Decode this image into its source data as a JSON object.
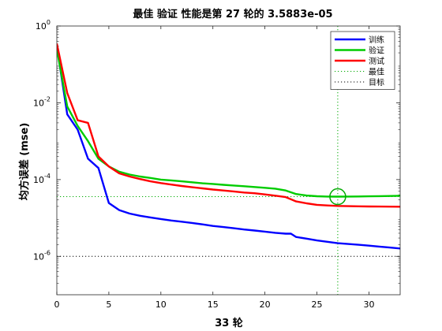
{
  "chart_data": {
    "type": "line",
    "title": "最佳 验证 性能是第 27 轮的 3.5883e-05",
    "xlabel": "33 轮",
    "ylabel": "均方误差 (mse)",
    "xlim": [
      0,
      33
    ],
    "ylim": [
      1e-07,
      1
    ],
    "yscale": "log",
    "x_ticks": [
      0,
      5,
      10,
      15,
      20,
      25,
      30
    ],
    "y_ticks": [
      {
        "value": 1e-06,
        "base": "10",
        "exp": "-6"
      },
      {
        "value": 0.0001,
        "base": "10",
        "exp": "-4"
      },
      {
        "value": 0.01,
        "base": "10",
        "exp": "-2"
      },
      {
        "value": 1,
        "base": "10",
        "exp": "0"
      }
    ],
    "legend_position": "top-right",
    "series": [
      {
        "name": "训练",
        "color": "#0000ff",
        "x": [
          0,
          1,
          2,
          3,
          4,
          5,
          6,
          7,
          8,
          9,
          10,
          11,
          12,
          13,
          14,
          15,
          16,
          17,
          18,
          19,
          20,
          21,
          22,
          22.5,
          23,
          24,
          25,
          26,
          27,
          28,
          29,
          30,
          31,
          32,
          33
        ],
        "values": [
          0.3,
          0.005,
          0.002,
          0.00035,
          0.0002,
          2.45e-05,
          1.6e-05,
          1.3e-05,
          1.14e-05,
          1.03e-05,
          9.4e-06,
          8.6e-06,
          8e-06,
          7.4e-06,
          6.8e-06,
          6.2e-06,
          5.8e-06,
          5.4e-06,
          5e-06,
          4.7e-06,
          4.4e-06,
          4.1e-06,
          3.9e-06,
          3.9e-06,
          3.2e-06,
          2.9e-06,
          2.6e-06,
          2.4e-06,
          2.2e-06,
          2.1e-06,
          2e-06,
          1.9e-06,
          1.8e-06,
          1.7e-06,
          1.6e-06
        ]
      },
      {
        "name": "验证",
        "color": "#00cc00",
        "x": [
          0,
          1,
          2,
          3,
          4,
          5,
          6,
          7,
          8,
          9,
          10,
          11,
          12,
          13,
          14,
          15,
          16,
          17,
          18,
          19,
          20,
          21,
          22,
          23,
          24,
          25,
          26,
          27,
          28,
          29,
          30,
          31,
          32,
          33
        ],
        "values": [
          0.25,
          0.008,
          0.0025,
          0.001,
          0.00035,
          0.00022,
          0.00016,
          0.000135,
          0.00012,
          0.00011,
          0.0001,
          9.5e-05,
          9e-05,
          8.5e-05,
          8e-05,
          7.7e-05,
          7.3e-05,
          7e-05,
          6.7e-05,
          6.4e-05,
          6.1e-05,
          5.8e-05,
          5.2e-05,
          4.2e-05,
          3.85e-05,
          3.68e-05,
          3.61e-05,
          3.59e-05,
          3.61e-05,
          3.63e-05,
          3.66e-05,
          3.69e-05,
          3.73e-05,
          3.78e-05
        ]
      },
      {
        "name": "测试",
        "color": "#ff0000",
        "x": [
          0,
          1,
          2,
          3,
          4,
          5,
          6,
          7,
          8,
          9,
          10,
          11,
          12,
          13,
          14,
          15,
          16,
          17,
          18,
          19,
          20,
          21,
          22,
          23,
          24,
          25,
          26,
          27,
          28,
          29,
          30,
          31,
          32,
          33
        ],
        "values": [
          0.35,
          0.018,
          0.0035,
          0.003,
          0.0004,
          0.00022,
          0.000145,
          0.00012,
          0.000103,
          9e-05,
          8.1e-05,
          7.4e-05,
          6.8e-05,
          6.3e-05,
          5.9e-05,
          5.5e-05,
          5.2e-05,
          4.9e-05,
          4.6e-05,
          4.4e-05,
          4.1e-05,
          3.8e-05,
          3.5e-05,
          2.7e-05,
          2.4e-05,
          2.2e-05,
          2.12e-05,
          2.06e-05,
          2.03e-05,
          2.01e-05,
          1.99e-05,
          1.98e-05,
          1.97e-05,
          1.96e-05
        ]
      }
    ],
    "best": {
      "name": "最佳",
      "x": 27,
      "y": 3.5883e-05,
      "color": "#00aa00"
    },
    "goal": {
      "name": "目标",
      "y": 1e-06,
      "color": "#000000"
    }
  }
}
